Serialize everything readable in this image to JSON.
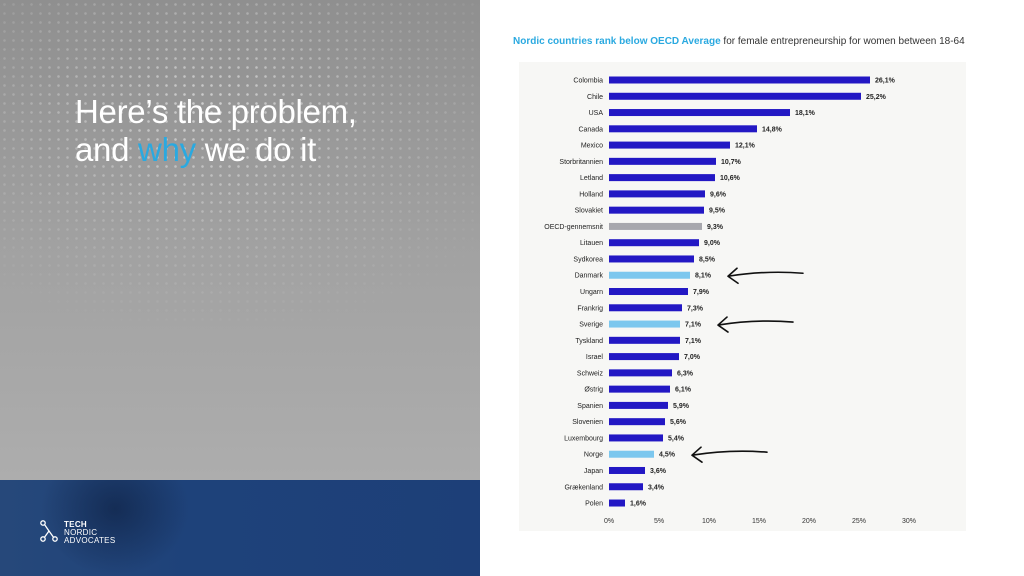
{
  "slide": {
    "headline_line1": "Here’s the problem,",
    "headline_line2_pre": "and ",
    "headline_accent": "why",
    "headline_line2_post": " we do it",
    "heading_highlight": "Nordic countries rank below OECD Average",
    "heading_rest": " for female entrepreneurship for women between 18-64",
    "logo": {
      "line1": "TECH",
      "line2": "NORDIC",
      "line3": "ADVOCATES",
      "icon": "circuit-icon"
    }
  },
  "colors": {
    "accent": "#2aa9e0",
    "bar_default": "#2318c4",
    "bar_nordic": "#7cc7ee",
    "bar_oecd": "#a7a7ad",
    "footer_band": "#1e427a"
  },
  "chart_data": {
    "type": "bar",
    "orientation": "horizontal",
    "categories": [
      "Colombia",
      "Chile",
      "USA",
      "Canada",
      "Mexico",
      "Storbritannien",
      "Letland",
      "Holland",
      "Slovakiet",
      "OECD-gennemsnit",
      "Litauen",
      "Sydkorea",
      "Danmark",
      "Ungarn",
      "Frankrig",
      "Sverige",
      "Tyskland",
      "Israel",
      "Schweiz",
      "Østrig",
      "Spanien",
      "Slovenien",
      "Luxembourg",
      "Norge",
      "Japan",
      "Grækenland",
      "Polen"
    ],
    "values": [
      26.1,
      25.2,
      18.1,
      14.8,
      12.1,
      10.7,
      10.6,
      9.6,
      9.5,
      9.3,
      9.0,
      8.5,
      8.1,
      7.9,
      7.3,
      7.1,
      7.1,
      7.0,
      6.3,
      6.1,
      5.9,
      5.6,
      5.4,
      4.5,
      3.6,
      3.4,
      1.6
    ],
    "value_labels": [
      "26,1%",
      "25,2%",
      "18,1%",
      "14,8%",
      "12,1%",
      "10,7%",
      "10,6%",
      "9,6%",
      "9,5%",
      "9,3%",
      "9,0%",
      "8,5%",
      "8,1%",
      "7,9%",
      "7,3%",
      "7,1%",
      "7,1%",
      "7,0%",
      "6,3%",
      "6,1%",
      "5,9%",
      "5,6%",
      "5,4%",
      "4,5%",
      "3,6%",
      "3,4%",
      "1,6%"
    ],
    "highlight_nordic": [
      "Danmark",
      "Sverige",
      "Norge"
    ],
    "highlight_average": [
      "OECD-gennemsnit"
    ],
    "arrows_point_to": [
      "Danmark",
      "Sverige",
      "Norge"
    ],
    "xlim": [
      0,
      30
    ],
    "x_ticks": [
      0,
      5,
      10,
      15,
      20,
      25,
      30
    ],
    "x_tick_labels": [
      "0%",
      "5%",
      "10%",
      "15%",
      "20%",
      "25%",
      "30%"
    ],
    "grid": false,
    "legend": "none"
  }
}
